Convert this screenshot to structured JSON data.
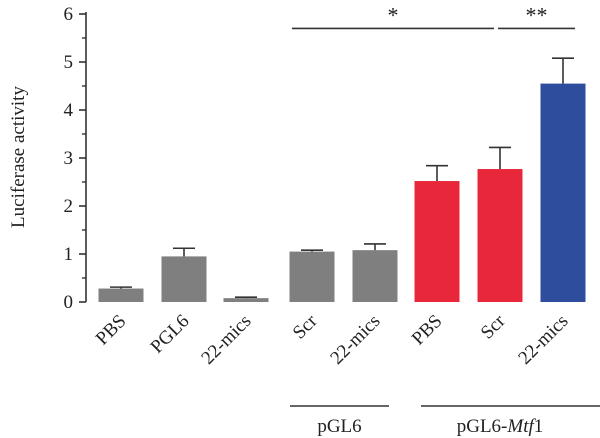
{
  "chart_data": {
    "type": "bar",
    "ylabel": "Luciferase activity",
    "ylim": [
      0,
      6
    ],
    "yticks": [
      0,
      1,
      2,
      3,
      4,
      5,
      6
    ],
    "categories": [
      "PBS",
      "PGL6",
      "22-mics",
      "Scr",
      "22-mics",
      "PBS",
      "Scr",
      "22-mics"
    ],
    "values": [
      0.28,
      0.95,
      0.08,
      1.05,
      1.08,
      2.52,
      2.77,
      4.55
    ],
    "errors": [
      0.03,
      0.17,
      0.02,
      0.03,
      0.13,
      0.32,
      0.45,
      0.53
    ],
    "colors": [
      "#7f7f7f",
      "#7f7f7f",
      "#7f7f7f",
      "#7f7f7f",
      "#7f7f7f",
      "#e8283a",
      "#e8283a",
      "#2e4d9c"
    ],
    "groups": [
      {
        "label": "pGL6",
        "italic": "",
        "suffix": "",
        "from": 3,
        "to": 4
      },
      {
        "label": "pGL6-",
        "italic": "Mtf",
        "suffix": "1",
        "from": 5,
        "to": 7
      }
    ],
    "significance": [
      {
        "label": "*",
        "from": 3,
        "to": 6
      },
      {
        "label": "**",
        "from": 6,
        "to": 7
      }
    ]
  }
}
